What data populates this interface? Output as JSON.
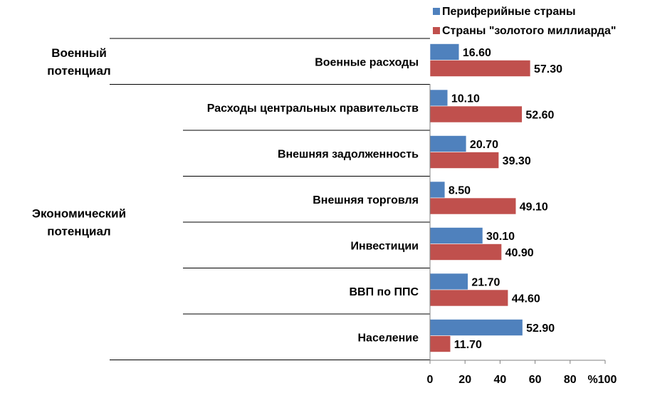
{
  "chart_data": {
    "type": "bar",
    "orientation": "horizontal",
    "categories": [
      "Военные расходы",
      "Расходы центральных правительств",
      "Внешняя задолженность",
      "Внешняя торговля",
      "Инвестиции",
      "ВВП по ППС",
      "Население"
    ],
    "series": [
      {
        "name": "Периферийные страны",
        "color": "#4F81BD",
        "values": [
          16.6,
          10.1,
          20.7,
          8.5,
          30.1,
          21.7,
          52.9
        ],
        "labels": [
          "16.60",
          "10.10",
          "20.70",
          "8.50",
          "30.10",
          "21.70",
          "52.90"
        ]
      },
      {
        "name": "Страны \"золотого миллиарда\"",
        "color": "#C0504D",
        "values": [
          57.3,
          52.6,
          39.3,
          49.1,
          40.9,
          44.6,
          11.7
        ],
        "labels": [
          "57.30",
          "52.60",
          "39.30",
          "49.10",
          "40.90",
          "44.60",
          "11.70"
        ]
      }
    ],
    "groups": [
      {
        "label_lines": [
          "Военный",
          "потенциал"
        ],
        "start": 0,
        "end": 0
      },
      {
        "label_lines": [
          "Экономический",
          "потенциал"
        ],
        "start": 1,
        "end": 6
      }
    ],
    "xlim": [
      0,
      100
    ],
    "x_ticks": [
      0,
      20,
      40,
      60,
      80
    ],
    "x_tick_labels": [
      "0",
      "20",
      "40",
      "60",
      "80"
    ],
    "x_unit_label": "%100",
    "legend_position": "top-right",
    "grid": false
  }
}
